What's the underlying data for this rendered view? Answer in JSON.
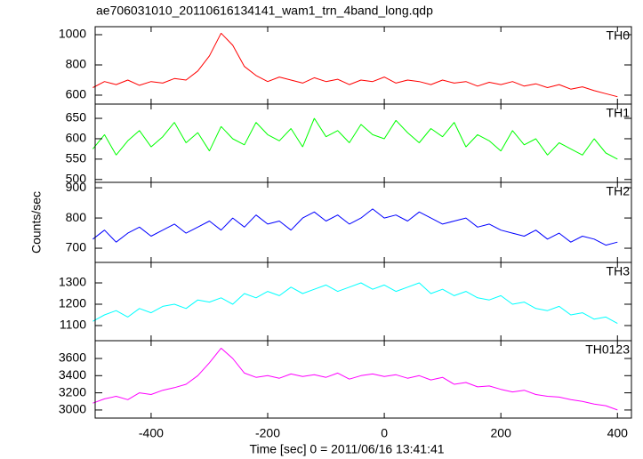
{
  "title": "ae706031010_20110616134141_wam1_trn_4band_long.qdp",
  "x_label": "Time [sec] 0 = 2011/06/16 13:41:41",
  "y_label": "Counts/sec",
  "chart_data": [
    {
      "type": "line",
      "xlim": [
        -496,
        424
      ],
      "xticks": [
        -400,
        -200,
        0,
        200,
        400
      ],
      "ylim": [
        541,
        1053
      ],
      "yticks": [
        600,
        800,
        1000
      ],
      "x": [
        -500,
        -480,
        -460,
        -440,
        -420,
        -400,
        -380,
        -360,
        -340,
        -320,
        -300,
        -280,
        -260,
        -240,
        -220,
        -200,
        -180,
        -160,
        -140,
        -120,
        -100,
        -80,
        -60,
        -40,
        -20,
        0,
        20,
        40,
        60,
        80,
        100,
        120,
        140,
        160,
        180,
        200,
        220,
        240,
        260,
        280,
        300,
        320,
        340,
        360,
        380,
        400
      ],
      "series": [
        {
          "name": "TH0",
          "color": "#ff0000",
          "values": [
            650,
            690,
            670,
            700,
            665,
            690,
            680,
            710,
            700,
            760,
            860,
            1010,
            930,
            790,
            730,
            690,
            720,
            700,
            680,
            715,
            690,
            705,
            670,
            700,
            690,
            720,
            680,
            700,
            690,
            670,
            700,
            680,
            690,
            660,
            685,
            670,
            690,
            660,
            675,
            650,
            670,
            640,
            655,
            630,
            610,
            590
          ]
        }
      ]
    },
    {
      "type": "line",
      "xlim": [
        -496,
        424
      ],
      "xticks": [
        -400,
        -200,
        0,
        200,
        400
      ],
      "ylim": [
        493,
        685
      ],
      "yticks": [
        500,
        550,
        600,
        650
      ],
      "x": [
        -500,
        -480,
        -460,
        -440,
        -420,
        -400,
        -380,
        -360,
        -340,
        -320,
        -300,
        -280,
        -260,
        -240,
        -220,
        -200,
        -180,
        -160,
        -140,
        -120,
        -100,
        -80,
        -60,
        -40,
        -20,
        0,
        20,
        40,
        60,
        80,
        100,
        120,
        140,
        160,
        180,
        200,
        220,
        240,
        260,
        280,
        300,
        320,
        340,
        360,
        380,
        400
      ],
      "series": [
        {
          "name": "TH1",
          "color": "#00ff00",
          "values": [
            575,
            610,
            560,
            595,
            620,
            580,
            605,
            640,
            590,
            615,
            570,
            630,
            600,
            585,
            640,
            610,
            595,
            625,
            580,
            650,
            605,
            620,
            590,
            635,
            610,
            600,
            645,
            615,
            590,
            625,
            605,
            640,
            580,
            610,
            595,
            570,
            620,
            585,
            600,
            560,
            590,
            575,
            560,
            600,
            565,
            550
          ]
        }
      ]
    },
    {
      "type": "line",
      "xlim": [
        -496,
        424
      ],
      "xticks": [
        -400,
        -200,
        0,
        200,
        400
      ],
      "ylim": [
        653,
        918
      ],
      "yticks": [
        700,
        800,
        900
      ],
      "x": [
        -500,
        -480,
        -460,
        -440,
        -420,
        -400,
        -380,
        -360,
        -340,
        -320,
        -300,
        -280,
        -260,
        -240,
        -220,
        -200,
        -180,
        -160,
        -140,
        -120,
        -100,
        -80,
        -60,
        -40,
        -20,
        0,
        20,
        40,
        60,
        80,
        100,
        120,
        140,
        160,
        180,
        200,
        220,
        240,
        260,
        280,
        300,
        320,
        340,
        360,
        380,
        400
      ],
      "series": [
        {
          "name": "TH2",
          "color": "#0000ff",
          "values": [
            730,
            760,
            720,
            750,
            770,
            740,
            760,
            780,
            750,
            770,
            790,
            760,
            800,
            770,
            810,
            780,
            790,
            760,
            800,
            820,
            790,
            810,
            780,
            800,
            830,
            800,
            810,
            790,
            820,
            800,
            780,
            790,
            800,
            770,
            780,
            760,
            750,
            740,
            760,
            730,
            750,
            720,
            740,
            730,
            710,
            720
          ]
        }
      ]
    },
    {
      "type": "line",
      "xlim": [
        -496,
        424
      ],
      "xticks": [
        -400,
        -200,
        0,
        200,
        400
      ],
      "ylim": [
        1029,
        1396
      ],
      "yticks": [
        1100,
        1200,
        1300
      ],
      "x": [
        -500,
        -480,
        -460,
        -440,
        -420,
        -400,
        -380,
        -360,
        -340,
        -320,
        -300,
        -280,
        -260,
        -240,
        -220,
        -200,
        -180,
        -160,
        -140,
        -120,
        -100,
        -80,
        -60,
        -40,
        -20,
        0,
        20,
        40,
        60,
        80,
        100,
        120,
        140,
        160,
        180,
        200,
        220,
        240,
        260,
        280,
        300,
        320,
        340,
        360,
        380,
        400
      ],
      "series": [
        {
          "name": "TH3",
          "color": "#00ffff",
          "values": [
            1120,
            1150,
            1170,
            1140,
            1180,
            1160,
            1190,
            1200,
            1180,
            1220,
            1210,
            1230,
            1200,
            1250,
            1230,
            1260,
            1240,
            1280,
            1250,
            1270,
            1290,
            1260,
            1280,
            1300,
            1270,
            1290,
            1260,
            1280,
            1300,
            1250,
            1270,
            1240,
            1260,
            1230,
            1220,
            1240,
            1200,
            1210,
            1180,
            1170,
            1190,
            1150,
            1160,
            1130,
            1140,
            1110
          ]
        }
      ]
    },
    {
      "type": "line",
      "xlim": [
        -496,
        424
      ],
      "xticks": [
        -400,
        -200,
        0,
        200,
        400
      ],
      "ylim": [
        2906,
        3807
      ],
      "yticks": [
        3000,
        3200,
        3400,
        3600
      ],
      "x": [
        -500,
        -480,
        -460,
        -440,
        -420,
        -400,
        -380,
        -360,
        -340,
        -320,
        -300,
        -280,
        -260,
        -240,
        -220,
        -200,
        -180,
        -160,
        -140,
        -120,
        -100,
        -80,
        -60,
        -40,
        -20,
        0,
        20,
        40,
        60,
        80,
        100,
        120,
        140,
        160,
        180,
        200,
        220,
        240,
        260,
        280,
        300,
        320,
        340,
        360,
        380,
        400
      ],
      "series": [
        {
          "name": "TH0123",
          "color": "#ff00ff",
          "values": [
            3080,
            3130,
            3160,
            3120,
            3200,
            3180,
            3230,
            3260,
            3300,
            3400,
            3550,
            3720,
            3600,
            3430,
            3380,
            3400,
            3370,
            3420,
            3390,
            3410,
            3380,
            3430,
            3360,
            3400,
            3420,
            3390,
            3410,
            3370,
            3400,
            3350,
            3380,
            3300,
            3320,
            3270,
            3280,
            3240,
            3210,
            3230,
            3180,
            3160,
            3150,
            3120,
            3100,
            3070,
            3050,
            3000
          ]
        }
      ]
    }
  ]
}
